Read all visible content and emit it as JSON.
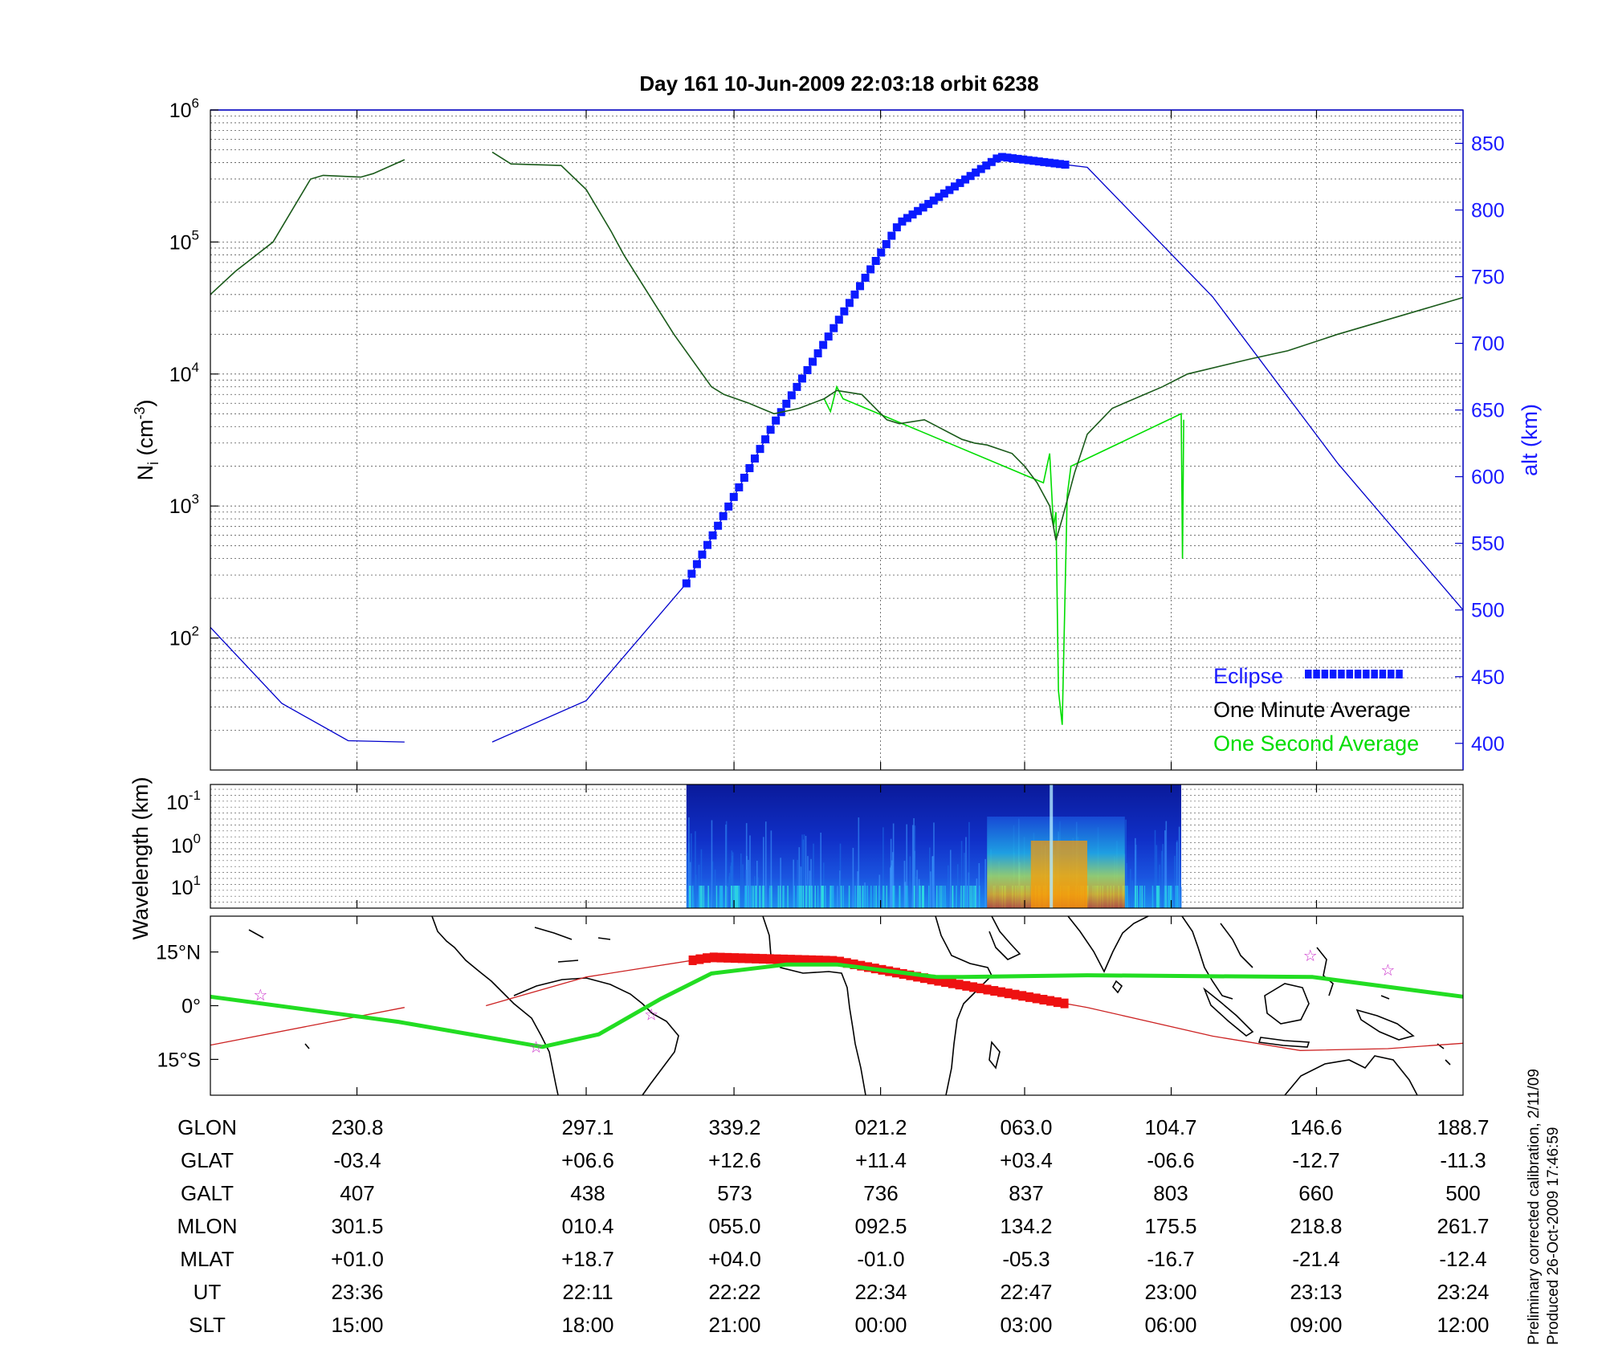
{
  "title": "Day 161  10-Jun-2009 22:03:18   orbit 6238",
  "colors": {
    "altitude": "#0000cc",
    "eclipse": "#0a1aff",
    "minute_avg": "#000000",
    "second_avg": "#00dd00",
    "ground_track": "#22dd22",
    "orbit_track": "#cc2222",
    "eclipse_track": "#ee1111",
    "stars": "#cc33cc"
  },
  "chart_data": [
    {
      "type": "line",
      "panel": "density",
      "ylabel": "N_i (cm^-3)",
      "ylabel_main": "N",
      "ylabel_sub": "i",
      "ylabel_mid": " (cm",
      "ylabel_sup": "-3",
      "ylabel_end": ")",
      "yscale": "log",
      "ylim": [
        10,
        1000000
      ],
      "yticks": [
        {
          "base": "10",
          "exp": "2"
        },
        {
          "base": "10",
          "exp": "3"
        },
        {
          "base": "10",
          "exp": "4"
        },
        {
          "base": "10",
          "exp": "5"
        },
        {
          "base": "10",
          "exp": "6"
        }
      ],
      "y2label": "alt (km)",
      "y2lim": [
        380,
        875
      ],
      "y2ticks": [
        "400",
        "450",
        "500",
        "550",
        "600",
        "650",
        "700",
        "750",
        "800",
        "850"
      ],
      "legend": [
        "Eclipse",
        "One Minute Average",
        "One Second Average"
      ],
      "legend_position": "bottom-right",
      "grid": true,
      "series": [
        {
          "name": "One Minute Average",
          "x": [
            0,
            0.02,
            0.05,
            0.08,
            0.09,
            0.12,
            0.13,
            0.155,
            "gap",
            0.225,
            0.24,
            0.28,
            0.3,
            0.32,
            0.33,
            0.37,
            0.4,
            0.41,
            0.43,
            0.45,
            0.47,
            0.49,
            0.5,
            0.52,
            0.54,
            0.55,
            0.57,
            0.6,
            0.61,
            0.62,
            0.64,
            0.65,
            0.66,
            0.67,
            0.675,
            0.68,
            0.69,
            0.7,
            0.72,
            0.76,
            0.78,
            0.83,
            0.86,
            0.9,
            1.0
          ],
          "y": [
            40000,
            60000,
            100000,
            300000,
            320000,
            310000,
            330000,
            420000,
            "gap",
            480000,
            390000,
            380000,
            250000,
            120000,
            80000,
            20000,
            8000,
            7000,
            6000,
            5000,
            5500,
            6500,
            7500,
            7000,
            4500,
            4200,
            4500,
            3200,
            3000,
            2900,
            2500,
            2000,
            1500,
            1000,
            550,
            800,
            1800,
            3500,
            5500,
            8000,
            10000,
            13000,
            15000,
            20000,
            38000
          ]
        },
        {
          "name": "One Second Average",
          "x": [
            0.49,
            0.495,
            0.5,
            0.505,
            0.665,
            0.67,
            0.673,
            0.675,
            0.677,
            0.68,
            0.684,
            0.687,
            0.775,
            0.776,
            0.777
          ],
          "y": [
            6500,
            5200,
            8000,
            6500,
            1500,
            2500,
            700,
            900,
            40,
            22,
            1200,
            2000,
            5000,
            400,
            4500
          ]
        },
        {
          "name": "alt",
          "x": [
            0,
            0.057,
            0.11,
            0.155,
            "gap",
            0.225,
            0.3,
            0.38,
            0.45,
            0.55,
            0.63,
            0.7,
            0.8,
            0.9,
            1.0
          ],
          "y": [
            487,
            430,
            402,
            401,
            "gap",
            401,
            432,
            520,
            640,
            790,
            840,
            832,
            735,
            610,
            500
          ]
        },
        {
          "name": "Eclipse",
          "x_range": [
            0.38,
            0.685
          ]
        }
      ]
    },
    {
      "type": "heatmap",
      "panel": "spectrogram",
      "ylabel": "Wavelength (km)",
      "yticks": [
        {
          "base": "10",
          "exp": "-1"
        },
        {
          "base": "10",
          "exp": "0"
        },
        {
          "base": "10",
          "exp": "1"
        }
      ],
      "x_range": [
        0.38,
        0.775
      ],
      "colormap": "jet"
    },
    {
      "type": "line",
      "panel": "map",
      "yticks": [
        "15°N",
        "0°",
        "15°S"
      ],
      "lat_range": [
        -25,
        25
      ],
      "series": [
        {
          "name": "ground track",
          "x": [
            0,
            0.15,
            0.265,
            0.31,
            0.36,
            0.4,
            0.46,
            0.5,
            0.58,
            0.6,
            0.7,
            0.88,
            1.0
          ],
          "y": [
            2.5,
            -4.5,
            -11.5,
            -8,
            2,
            9,
            11.5,
            11.5,
            8,
            8,
            8.5,
            8,
            2.5
          ]
        },
        {
          "name": "orbit track",
          "x": [
            0,
            0.155,
            "gap",
            0.22,
            0.3,
            0.4,
            0.5,
            0.58,
            0.7,
            0.8,
            0.87,
            0.94,
            1.0
          ],
          "y": [
            -11,
            -0.5,
            "gap",
            0,
            8,
            13.5,
            12.5,
            7,
            -0.5,
            -8.5,
            -12.5,
            -12,
            -10.5
          ]
        },
        {
          "name": "eclipse track",
          "x_range": [
            0.385,
            0.685
          ]
        }
      ],
      "stars": [
        [
          0.04,
          3
        ],
        [
          0.26,
          -11.5
        ],
        [
          0.352,
          -2.5
        ],
        [
          0.878,
          14
        ],
        [
          0.94,
          10
        ]
      ]
    }
  ],
  "table": {
    "rows": [
      {
        "label": "GLON",
        "values": [
          "230.8",
          "297.1",
          "339.2",
          "021.2",
          "063.0",
          "104.7",
          "146.6",
          "188.7"
        ]
      },
      {
        "label": "GLAT",
        "values": [
          "-03.4",
          "+06.6",
          "+12.6",
          "+11.4",
          "+03.4",
          "-06.6",
          "-12.7",
          "-11.3"
        ]
      },
      {
        "label": "GALT",
        "values": [
          "407",
          "438",
          "573",
          "736",
          "837",
          "803",
          "660",
          "500"
        ]
      },
      {
        "label": "MLON",
        "values": [
          "301.5",
          "010.4",
          "055.0",
          "092.5",
          "134.2",
          "175.5",
          "218.8",
          "261.7"
        ]
      },
      {
        "label": "MLAT",
        "values": [
          "+01.0",
          "+18.7",
          "+04.0",
          "-01.0",
          "-05.3",
          "-16.7",
          "-21.4",
          "-12.4"
        ]
      },
      {
        "label": "UT",
        "values": [
          "23:36",
          "22:11",
          "22:22",
          "22:34",
          "22:47",
          "23:00",
          "23:13",
          "23:24"
        ]
      },
      {
        "label": "SLT",
        "values": [
          "15:00",
          "18:00",
          "21:00",
          "00:00",
          "03:00",
          "06:00",
          "09:00",
          "12:00"
        ]
      }
    ]
  },
  "footer": {
    "line1": "Preliminary corrected calibration, 2/11/09",
    "line2": "Produced 26-Oct-2009 17:46:59"
  }
}
